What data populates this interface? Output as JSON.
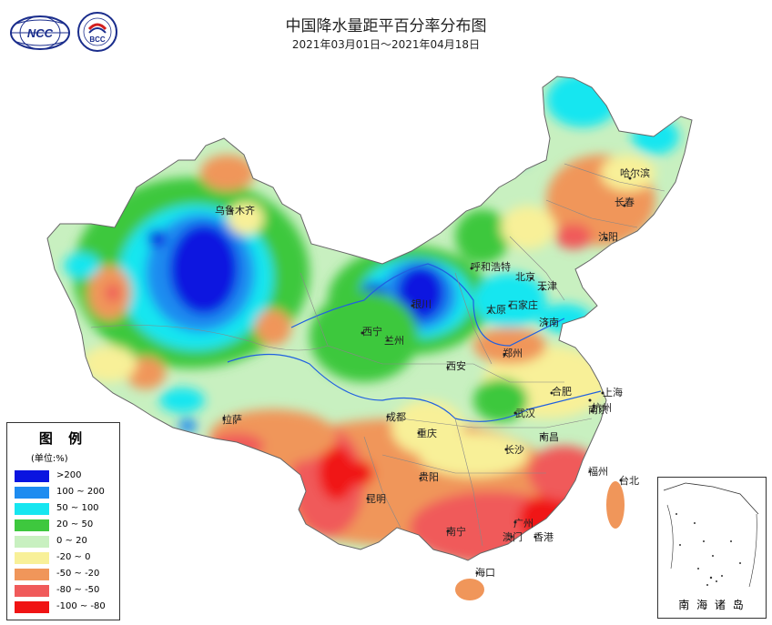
{
  "header": {
    "title": "中国降水量距平百分率分布图",
    "subtitle": "2021年03月01日～2021年04月18日"
  },
  "logos": {
    "ncc": "NCC",
    "bcc": "BCC"
  },
  "legend": {
    "title": "图 例",
    "unit": "(单位:%)",
    "items": [
      {
        "label": ">200",
        "color": "#0a14e0"
      },
      {
        "label": "100 ~ 200",
        "color": "#1e8cf0"
      },
      {
        "label": "50 ~ 100",
        "color": "#16e6f0"
      },
      {
        "label": "20 ~ 50",
        "color": "#3ec83e"
      },
      {
        "label": "0 ~ 20",
        "color": "#c8f0c0"
      },
      {
        "label": "-20 ~ 0",
        "color": "#f8f098"
      },
      {
        "label": "-50 ~ -20",
        "color": "#f0965a"
      },
      {
        "label": "-80 ~ -50",
        "color": "#f05a5a"
      },
      {
        "label": "-100 ~ -80",
        "color": "#f01414"
      }
    ]
  },
  "cities": [
    {
      "name": "哈尔滨"
    },
    {
      "name": "长春"
    },
    {
      "name": "沈阳"
    },
    {
      "name": "乌鲁木齐"
    },
    {
      "name": "呼和浩特"
    },
    {
      "name": "北京"
    },
    {
      "name": "天津"
    },
    {
      "name": "银川"
    },
    {
      "name": "石家庄"
    },
    {
      "name": "太原"
    },
    {
      "name": "济南"
    },
    {
      "name": "西宁"
    },
    {
      "name": "兰州"
    },
    {
      "name": "郑州"
    },
    {
      "name": "西安"
    },
    {
      "name": "合肥"
    },
    {
      "name": "上海"
    },
    {
      "name": "南京"
    },
    {
      "name": "拉萨"
    },
    {
      "name": "成都"
    },
    {
      "name": "武汉"
    },
    {
      "name": "杭州"
    },
    {
      "name": "重庆"
    },
    {
      "name": "南昌"
    },
    {
      "name": "长沙"
    },
    {
      "name": "贵阳"
    },
    {
      "name": "福州"
    },
    {
      "name": "台北"
    },
    {
      "name": "昆明"
    },
    {
      "name": "南宁"
    },
    {
      "name": "广州"
    },
    {
      "name": "香港"
    },
    {
      "name": "澳门"
    },
    {
      "name": "海口"
    }
  ],
  "inset": {
    "label": "南 海 诸 岛"
  }
}
